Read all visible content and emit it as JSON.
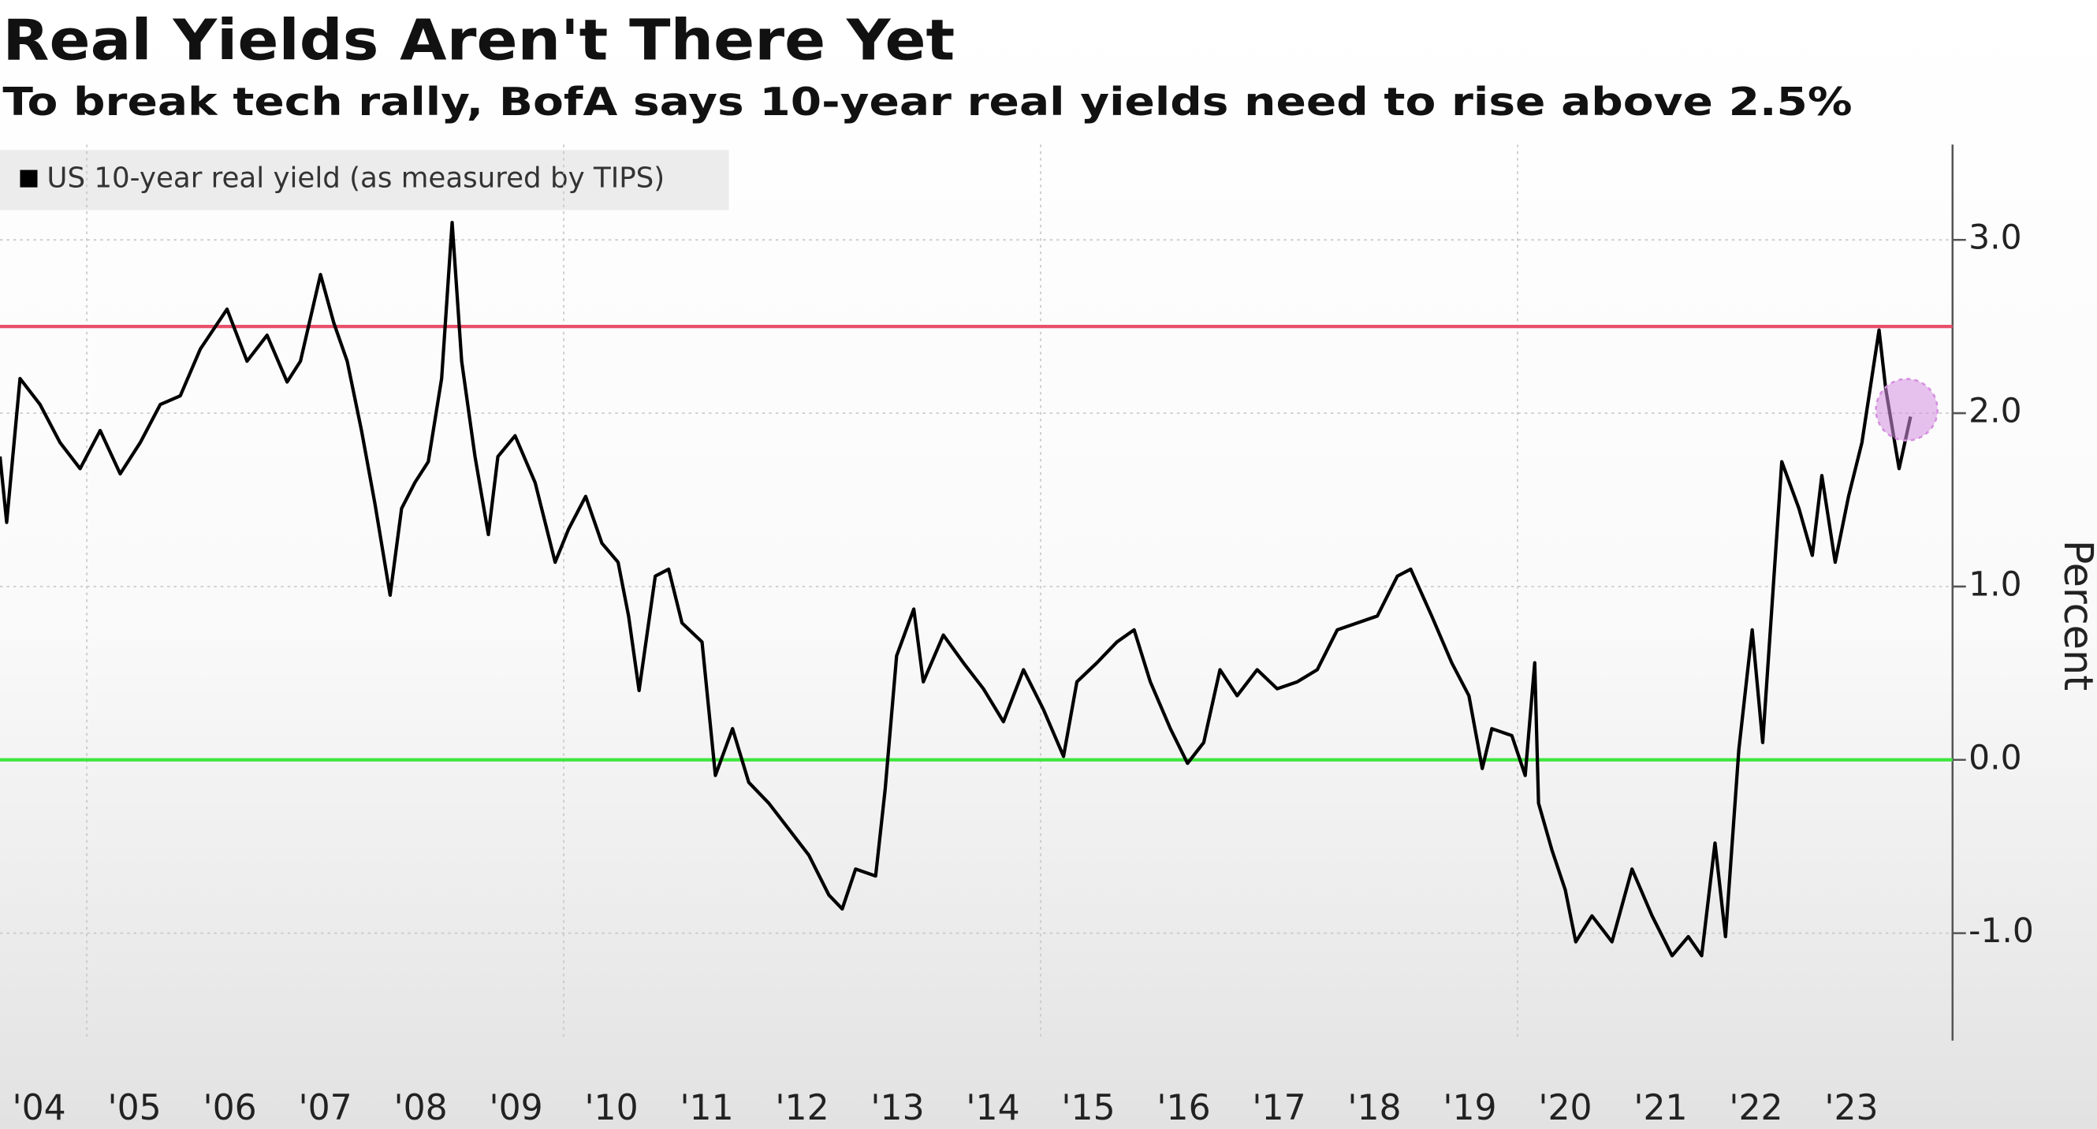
{
  "chart_data": {
    "type": "line",
    "title": "Real Yields Aren't There Yet",
    "subtitle": "To break tech rally, BofA says 10-year real yields need to rise above 2.5%",
    "y_label": "Percent",
    "x": [
      2004.09,
      2004.16,
      2004.3,
      2004.51,
      2004.72,
      2004.93,
      2005.14,
      2005.35,
      2005.56,
      2005.77,
      2005.98,
      2006.19,
      2006.47,
      2006.68,
      2006.89,
      2007.1,
      2007.24,
      2007.45,
      2007.59,
      2007.73,
      2007.88,
      2008.02,
      2008.18,
      2008.3,
      2008.44,
      2008.58,
      2008.72,
      2008.83,
      2008.93,
      2009.07,
      2009.21,
      2009.31,
      2009.49,
      2009.7,
      2009.91,
      2010.05,
      2010.23,
      2010.4,
      2010.57,
      2010.68,
      2010.79,
      2010.96,
      2011.1,
      2011.24,
      2011.45,
      2011.59,
      2011.77,
      2011.94,
      2012.15,
      2012.36,
      2012.57,
      2012.78,
      2012.92,
      2013.06,
      2013.27,
      2013.37,
      2013.49,
      2013.67,
      2013.77,
      2013.98,
      2014.19,
      2014.4,
      2014.61,
      2014.82,
      2015.03,
      2015.24,
      2015.38,
      2015.59,
      2015.8,
      2015.98,
      2016.15,
      2016.36,
      2016.54,
      2016.71,
      2016.88,
      2017.06,
      2017.27,
      2017.48,
      2017.69,
      2017.9,
      2018.11,
      2018.32,
      2018.53,
      2018.74,
      2018.88,
      2019.1,
      2019.31,
      2019.49,
      2019.63,
      2019.73,
      2019.94,
      2020.08,
      2020.18,
      2020.22,
      2020.36,
      2020.5,
      2020.61,
      2020.78,
      2020.99,
      2021.2,
      2021.41,
      2021.62,
      2021.79,
      2021.93,
      2022.07,
      2022.18,
      2022.32,
      2022.46,
      2022.57,
      2022.67,
      2022.77,
      2022.95,
      2023.09,
      2023.19,
      2023.33,
      2023.47,
      2023.61,
      2023.79,
      2023.86,
      2024.0,
      2024.12
    ],
    "series": [
      {
        "name": "US 10-year real yield (as measured by TIPS)",
        "color": "#000000",
        "values": [
          1.75,
          1.37,
          2.2,
          2.05,
          1.83,
          1.68,
          1.9,
          1.65,
          1.83,
          2.05,
          2.1,
          2.37,
          2.6,
          2.3,
          2.45,
          2.18,
          2.3,
          2.8,
          2.52,
          2.3,
          1.9,
          1.48,
          0.95,
          1.45,
          1.6,
          1.72,
          2.2,
          3.1,
          2.3,
          1.75,
          1.3,
          1.75,
          1.87,
          1.6,
          1.14,
          1.33,
          1.52,
          1.25,
          1.14,
          0.83,
          0.4,
          1.06,
          1.1,
          0.79,
          0.68,
          -0.09,
          0.18,
          -0.13,
          -0.25,
          -0.4,
          -0.55,
          -0.78,
          -0.86,
          -0.63,
          -0.67,
          -0.17,
          0.6,
          0.87,
          0.45,
          0.72,
          0.56,
          0.41,
          0.22,
          0.52,
          0.29,
          0.02,
          0.45,
          0.56,
          0.68,
          0.75,
          0.45,
          0.18,
          -0.02,
          0.1,
          0.52,
          0.37,
          0.52,
          0.41,
          0.45,
          0.52,
          0.75,
          0.79,
          0.83,
          1.06,
          1.1,
          0.83,
          0.56,
          0.37,
          -0.05,
          0.18,
          0.14,
          -0.09,
          0.56,
          -0.25,
          -0.52,
          -0.75,
          -1.05,
          -0.9,
          -1.05,
          -0.63,
          -0.9,
          -1.13,
          -1.02,
          -1.13,
          -0.48,
          -1.02,
          0.06,
          0.75,
          0.1,
          0.91,
          1.72,
          1.45,
          1.18,
          1.64,
          1.14,
          1.52,
          1.83,
          2.48,
          2.14,
          1.68,
          1.98
        ]
      }
    ],
    "xlim": [
      2004.09,
      2024.21
    ],
    "xticks": [
      {
        "value": 2004.5,
        "label": "'04"
      },
      {
        "value": 2005.5,
        "label": "'05"
      },
      {
        "value": 2006.5,
        "label": "'06"
      },
      {
        "value": 2007.5,
        "label": "'07"
      },
      {
        "value": 2008.5,
        "label": "'08"
      },
      {
        "value": 2009.5,
        "label": "'09"
      },
      {
        "value": 2010.5,
        "label": "'10"
      },
      {
        "value": 2011.5,
        "label": "'11"
      },
      {
        "value": 2012.5,
        "label": "'12"
      },
      {
        "value": 2013.5,
        "label": "'13"
      },
      {
        "value": 2014.5,
        "label": "'14"
      },
      {
        "value": 2015.5,
        "label": "'15"
      },
      {
        "value": 2016.5,
        "label": "'16"
      },
      {
        "value": 2017.5,
        "label": "'17"
      },
      {
        "value": 2018.5,
        "label": "'18"
      },
      {
        "value": 2019.5,
        "label": "'19"
      },
      {
        "value": 2020.5,
        "label": "'20"
      },
      {
        "value": 2021.5,
        "label": "'21"
      },
      {
        "value": 2022.5,
        "label": "'22"
      },
      {
        "value": 2023.5,
        "label": "'23"
      }
    ],
    "xgrid": [
      2005,
      2010,
      2015,
      2020
    ],
    "ylim": [
      -1.62,
      3.55
    ],
    "yticks": [
      {
        "value": 3,
        "label": "3.0"
      },
      {
        "value": 2,
        "label": "2.0"
      },
      {
        "value": 1,
        "label": "1.0"
      },
      {
        "value": 0,
        "label": "0.0"
      },
      {
        "value": -1,
        "label": "-1.0"
      }
    ],
    "grid": true,
    "hlines": [
      {
        "value": 2.5,
        "color": "#e8506a"
      },
      {
        "value": 0,
        "color": "#3ee63e"
      }
    ],
    "highlight": {
      "x": 2024.08,
      "y": 2.02,
      "color": "#d58fe0"
    }
  }
}
